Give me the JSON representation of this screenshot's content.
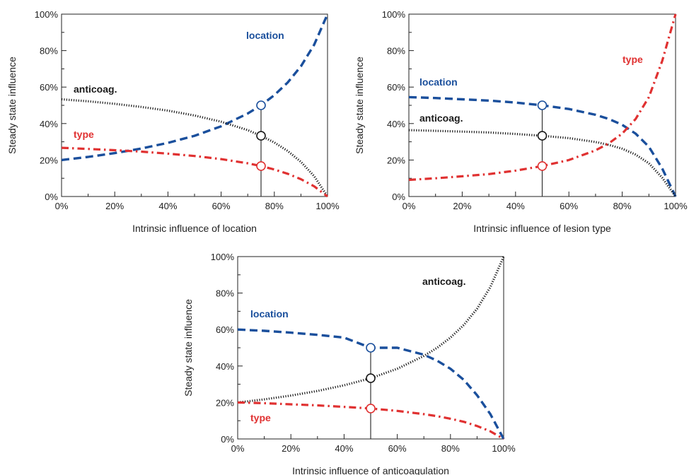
{
  "colors": {
    "location": "#1a4f9c",
    "type": "#e03131",
    "anticoag": "#1a1a1a"
  },
  "chart_data": [
    {
      "type": "line",
      "xlabel": "Intrinsic influence of location",
      "ylabel": "Steady state influence",
      "xlim": [
        0,
        100
      ],
      "ylim": [
        0,
        100
      ],
      "xticks": [
        "0%",
        "20%",
        "40%",
        "60%",
        "80%",
        "100%"
      ],
      "yticks": [
        "0%",
        "20%",
        "40%",
        "60%",
        "80%",
        "100%"
      ],
      "marker_x": 75,
      "series": [
        {
          "name": "location",
          "key": "location",
          "style": "dashed",
          "x": [
            0,
            10,
            20,
            30,
            40,
            50,
            60,
            70,
            75,
            80,
            85,
            90,
            95,
            100
          ],
          "values": [
            20,
            21.7,
            23.8,
            26.3,
            29.4,
            33.3,
            38.5,
            45.5,
            50,
            55.6,
            62.5,
            71.4,
            83.3,
            100
          ]
        },
        {
          "name": "anticoag.",
          "key": "anticoag",
          "style": "dotted",
          "x": [
            0,
            10,
            20,
            30,
            40,
            50,
            60,
            70,
            75,
            80,
            85,
            90,
            95,
            100
          ],
          "values": [
            53.3,
            52.2,
            50.8,
            49.1,
            47.1,
            44.4,
            41,
            36.4,
            33.3,
            29.6,
            25,
            19,
            11.1,
            0
          ]
        },
        {
          "name": "type",
          "key": "type",
          "style": "dashdot",
          "x": [
            0,
            10,
            20,
            30,
            40,
            50,
            60,
            70,
            75,
            80,
            85,
            90,
            95,
            100
          ],
          "values": [
            26.7,
            26.1,
            25.4,
            24.6,
            23.5,
            22.2,
            20.5,
            18.2,
            16.7,
            14.8,
            12.5,
            9.5,
            5.6,
            0
          ]
        }
      ],
      "labels": [
        {
          "key": "location",
          "text": "location"
        },
        {
          "key": "anticoag",
          "text": "anticoag."
        },
        {
          "key": "type",
          "text": "type"
        }
      ]
    },
    {
      "type": "line",
      "xlabel": "Intrinsic influence of lesion type",
      "ylabel": "Steady state influence",
      "xlim": [
        0,
        100
      ],
      "ylim": [
        0,
        100
      ],
      "xticks": [
        "0%",
        "20%",
        "40%",
        "60%",
        "80%",
        "100%"
      ],
      "yticks": [
        "0%",
        "20%",
        "40%",
        "60%",
        "80%",
        "100%"
      ],
      "marker_x": 50,
      "series": [
        {
          "name": "location",
          "key": "location",
          "style": "dashed",
          "x": [
            0,
            10,
            20,
            30,
            40,
            50,
            60,
            70,
            75,
            80,
            85,
            90,
            95,
            100
          ],
          "values": [
            54.5,
            54,
            53.3,
            52.6,
            51.5,
            50,
            48,
            44.8,
            42.5,
            39.3,
            34.5,
            27.3,
            15.4,
            0
          ]
        },
        {
          "name": "anticoag.",
          "key": "anticoag",
          "style": "dotted",
          "x": [
            0,
            10,
            20,
            30,
            40,
            50,
            60,
            70,
            75,
            80,
            85,
            90,
            95,
            100
          ],
          "values": [
            36.4,
            36,
            35.6,
            35.1,
            34.3,
            33.3,
            32,
            29.9,
            28.3,
            26.2,
            23,
            18.2,
            10.3,
            0
          ]
        },
        {
          "name": "type",
          "key": "type",
          "style": "dashdot",
          "x": [
            0,
            10,
            20,
            30,
            40,
            50,
            60,
            70,
            75,
            80,
            85,
            90,
            95,
            100
          ],
          "values": [
            9.1,
            10,
            11.1,
            12.3,
            14.2,
            16.7,
            20,
            25.3,
            29.2,
            34.5,
            42.5,
            54.5,
            74.3,
            100
          ]
        }
      ],
      "labels": [
        {
          "key": "location",
          "text": "location"
        },
        {
          "key": "anticoag",
          "text": "anticoag."
        },
        {
          "key": "type",
          "text": "type"
        }
      ]
    },
    {
      "type": "line",
      "xlabel": "Intrinsic influence of anticoagulation",
      "ylabel": "Steady state influence",
      "xlim": [
        0,
        100
      ],
      "ylim": [
        0,
        100
      ],
      "xticks": [
        "0%",
        "20%",
        "40%",
        "60%",
        "80%",
        "100%"
      ],
      "yticks": [
        "0%",
        "20%",
        "40%",
        "60%",
        "80%",
        "100%"
      ],
      "marker_x": 50,
      "series": [
        {
          "name": "location",
          "key": "location",
          "style": "dashed",
          "x": [
            0,
            10,
            20,
            30,
            40,
            50,
            60,
            70,
            75,
            80,
            85,
            90,
            95,
            100
          ],
          "values": [
            60,
            59.3,
            58.3,
            57.1,
            55.6,
            50,
            50,
            46.2,
            42.9,
            38.5,
            32.4,
            24,
            13.6,
            0
          ]
        },
        {
          "name": "anticoag.",
          "key": "anticoag",
          "style": "dotted",
          "x": [
            0,
            10,
            20,
            30,
            40,
            50,
            60,
            70,
            75,
            80,
            85,
            90,
            95,
            100
          ],
          "values": [
            20,
            21.7,
            23.8,
            26.3,
            29.4,
            33.3,
            38.5,
            45.5,
            50,
            55.6,
            62.5,
            71.4,
            83.3,
            100
          ]
        },
        {
          "name": "type",
          "key": "type",
          "style": "dashdot",
          "x": [
            0,
            10,
            20,
            30,
            40,
            50,
            60,
            70,
            75,
            80,
            85,
            90,
            95,
            100
          ],
          "values": [
            20,
            19.6,
            19,
            18.4,
            17.6,
            16.7,
            15.4,
            13.6,
            12.5,
            11.1,
            9.4,
            7.1,
            4.2,
            0
          ]
        }
      ],
      "labels": [
        {
          "key": "anticoag",
          "text": "anticoag."
        },
        {
          "key": "location",
          "text": "location"
        },
        {
          "key": "type",
          "text": "type"
        }
      ]
    }
  ]
}
